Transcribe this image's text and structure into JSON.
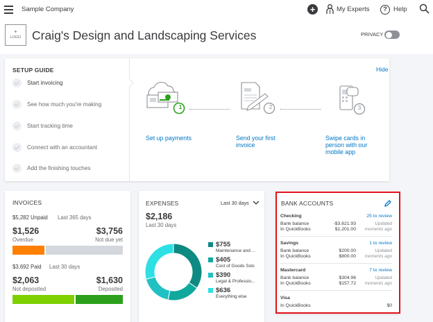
{
  "topbar": {
    "company": "Sample Company",
    "plus_label": "+",
    "my_experts": "My Experts",
    "help_mark": "?",
    "help": "Help"
  },
  "header": {
    "logo_plus": "+",
    "logo_label": "LOGO",
    "business_name": "Craig's Design and Landscaping Services",
    "privacy_label": "PRIVACY"
  },
  "setup": {
    "title": "SETUP GUIDE",
    "hide": "Hide",
    "steps": [
      "Start invoicing",
      "See how much you're making",
      "Start tracking time",
      "Connect with an accountant",
      "Add the finishing touches"
    ],
    "actions": [
      {
        "number": "1",
        "label": "Set up payments"
      },
      {
        "number": "2",
        "label": "Send your first invoice"
      },
      {
        "number": "3",
        "label": "Swipe cards in person with our mobile app"
      }
    ]
  },
  "invoices": {
    "title": "INVOICES",
    "unpaid_amount": "$5,282 Unpaid",
    "unpaid_period": "Last 365 days",
    "overdue_value": "$1,526",
    "overdue_label": "Overdue",
    "notdue_value": "$3,756",
    "notdue_label": "Not due yet",
    "paid_amount": "$3,692 Paid",
    "paid_period": "Last 30 days",
    "notdeposited_value": "$2,063",
    "notdeposited_label": "Not deposited",
    "deposited_value": "$1,630",
    "deposited_label": "Deposited",
    "overdue_fraction": 0.289,
    "notdeposited_fraction": 0.559,
    "colors": {
      "overdue": "#ff8000",
      "notdue": "#d4d7dc",
      "notdeposited": "#7fd000",
      "deposited": "#2ca01c"
    }
  },
  "expenses": {
    "title": "EXPENSES",
    "period": "Last 30 days",
    "total": "$2,186",
    "total_period": "Last 30 days",
    "categories": [
      {
        "amount": "$755",
        "label": "Maintenance and ...",
        "value": 755,
        "color": "#0e8a82"
      },
      {
        "amount": "$405",
        "label": "Cost of Goods Solc",
        "value": 405,
        "color": "#11a89e"
      },
      {
        "amount": "$390",
        "label": "Legal & Professio...",
        "value": 390,
        "color": "#21c1c3"
      },
      {
        "amount": "$636",
        "label": "Everything else",
        "value": 636,
        "color": "#2ee0e3"
      }
    ]
  },
  "bank": {
    "title": "BANK ACCOUNTS",
    "accounts": [
      {
        "name": "Checking",
        "review": "25 to review",
        "bank_label": "Bank balance",
        "bank_value": "-$3,621.93",
        "qb_label": "In QuickBooks",
        "qb_value": "$1,201.00",
        "updated_1": "Updated",
        "updated_2": "moments ago"
      },
      {
        "name": "Savings",
        "review": "1 to review",
        "bank_label": "Bank balance",
        "bank_value": "$200.00",
        "qb_label": "In QuickBooks",
        "qb_value": "$800.00",
        "updated_1": "Updated",
        "updated_2": "moments ago"
      },
      {
        "name": "Mastercard",
        "review": "7 to review",
        "bank_label": "Bank balance",
        "bank_value": "$304.96",
        "qb_label": "In QuickBooks",
        "qb_value": "$157.72",
        "updated_1": "Updated",
        "updated_2": "moments ago"
      },
      {
        "name": "Visa",
        "qb_label": "In QuickBooks",
        "qb_value": "$0"
      }
    ]
  }
}
